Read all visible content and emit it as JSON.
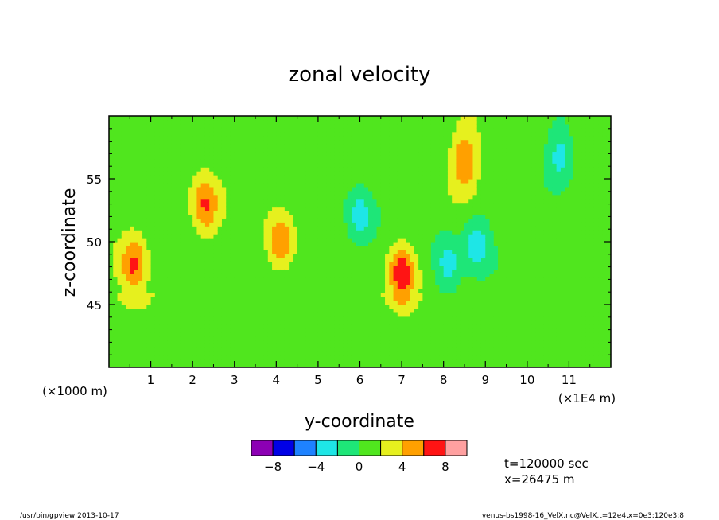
{
  "chart_data": {
    "type": "heatmap",
    "title": "zonal velocity",
    "xlabel": "y-coordinate",
    "ylabel": "z-coordinate",
    "x_axis": {
      "ticks": [
        1,
        2,
        3,
        4,
        5,
        6,
        7,
        8,
        9,
        10,
        11
      ],
      "range": [
        0,
        12
      ],
      "scale_note": "(×1E4 m)"
    },
    "y_axis": {
      "ticks": [
        45,
        50,
        55
      ],
      "range": [
        40,
        60
      ],
      "scale_note": "(×1000 m)"
    },
    "colorbar": {
      "colors": [
        "#8c00b4",
        "#0000e6",
        "#1e82ff",
        "#1ee6e6",
        "#1ee678",
        "#50e61e",
        "#e6f01e",
        "#ffa000",
        "#ff1414",
        "#ffa0a0"
      ],
      "tick_labels": [
        "−8",
        "−4",
        "0",
        "4",
        "8"
      ],
      "boundaries": [
        -10,
        -8,
        -6,
        -4,
        -2,
        0,
        2,
        4,
        6,
        8,
        10
      ]
    },
    "annotations": {
      "time": "t=120000 sec",
      "position": "x=26475 m"
    },
    "features": [
      {
        "kind": "max",
        "y": 7.0,
        "z": 47.5,
        "value": 7
      },
      {
        "kind": "max",
        "y": 8.5,
        "z": 56.5,
        "value": 5
      },
      {
        "kind": "max",
        "y": 0.6,
        "z": 48.2,
        "value": 5
      },
      {
        "kind": "max",
        "y": 4.1,
        "z": 50.0,
        "value": 5
      },
      {
        "kind": "max",
        "y": 2.3,
        "z": 53.0,
        "value": 5
      },
      {
        "kind": "min",
        "y": 10.8,
        "z": 57.0,
        "value": -4
      },
      {
        "kind": "min",
        "y": 8.1,
        "z": 48.0,
        "value": -4
      },
      {
        "kind": "min",
        "y": 6.0,
        "z": 52.0,
        "value": -4
      },
      {
        "kind": "min",
        "y": 8.8,
        "z": 50.0,
        "value": -4
      }
    ]
  },
  "footer": {
    "left": "/usr/bin/gpview  2013-10-17",
    "right": "venus-bs1998-16_VelX.nc@VelX,t=12e4,x=0e3:120e3:8"
  }
}
